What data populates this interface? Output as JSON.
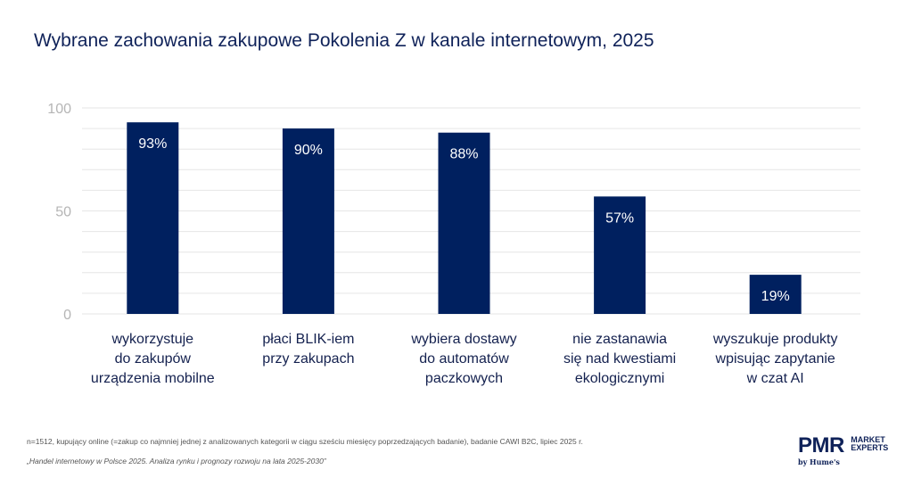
{
  "title": "Wybrane zachowania zakupowe Pokolenia Z w kanale internetowym, 2025",
  "chart_data": {
    "type": "bar",
    "title": "Wybrane zachowania zakupowe Pokolenia Z w kanale internetowym, 2025",
    "categories": [
      "wykorzystuje\ndo zakupów\nurządzenia mobilne",
      "płaci BLIK-iem\nprzy zakupach",
      "wybiera dostawy\ndo automatów\npaczkowych",
      "nie zastanawia\nsię nad kwestiami\nekologicznymi",
      "wyszukuje produkty\nwpisując zapytanie\nw czat AI"
    ],
    "values": [
      93,
      90,
      88,
      57,
      19
    ],
    "labels": [
      "93%",
      "90%",
      "88%",
      "57%",
      "19%"
    ],
    "yticks": [
      "0",
      "50",
      "100"
    ],
    "ylim": [
      0,
      100
    ],
    "grid": true,
    "xlabel": "",
    "ylabel": "",
    "bar_color": "#00205f"
  },
  "footnote": "n=1512, kupujący online (=zakup co najmniej jednej z analizowanych kategorii w ciągu sześciu miesięcy poprzedzających badanie), badanie CAWI B2C, lipiec 2025 r.",
  "source": "„Handel internetowy w Polsce 2025. Analiza rynku i prognozy rozwoju na lata 2025-2030”",
  "logo": {
    "main": "PMR",
    "line1": "MARKET",
    "line2": "EXPERTS",
    "by": "by Hume's"
  }
}
